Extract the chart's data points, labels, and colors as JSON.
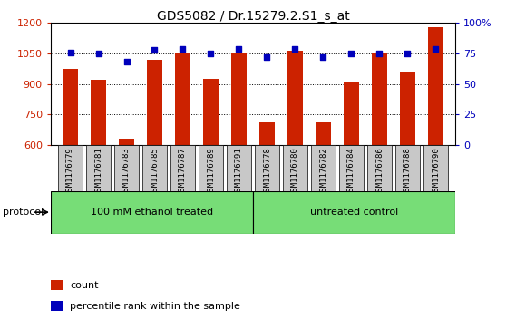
{
  "title": "GDS5082 / Dr.15279.2.S1_s_at",
  "samples": [
    "GSM1176779",
    "GSM1176781",
    "GSM1176783",
    "GSM1176785",
    "GSM1176787",
    "GSM1176789",
    "GSM1176791",
    "GSM1176778",
    "GSM1176780",
    "GSM1176782",
    "GSM1176784",
    "GSM1176786",
    "GSM1176788",
    "GSM1176790"
  ],
  "counts": [
    975,
    920,
    630,
    1020,
    1055,
    925,
    1055,
    710,
    1065,
    710,
    910,
    1050,
    960,
    1180
  ],
  "percentiles": [
    76,
    75,
    68,
    78,
    79,
    75,
    79,
    72,
    79,
    72,
    75,
    75,
    75,
    79
  ],
  "group1_count": 7,
  "group2_count": 7,
  "group1_label": "100 mM ethanol treated",
  "group2_label": "untreated control",
  "group_color": "#77DD77",
  "ylim_left": [
    600,
    1200
  ],
  "ylim_right": [
    0,
    100
  ],
  "yticks_left": [
    600,
    750,
    900,
    1050,
    1200
  ],
  "yticks_right": [
    0,
    25,
    50,
    75,
    100
  ],
  "bar_color": "#CC2200",
  "dot_color": "#0000BB",
  "tickbox_color": "#C8C8C8",
  "plot_bg": "#FFFFFF"
}
